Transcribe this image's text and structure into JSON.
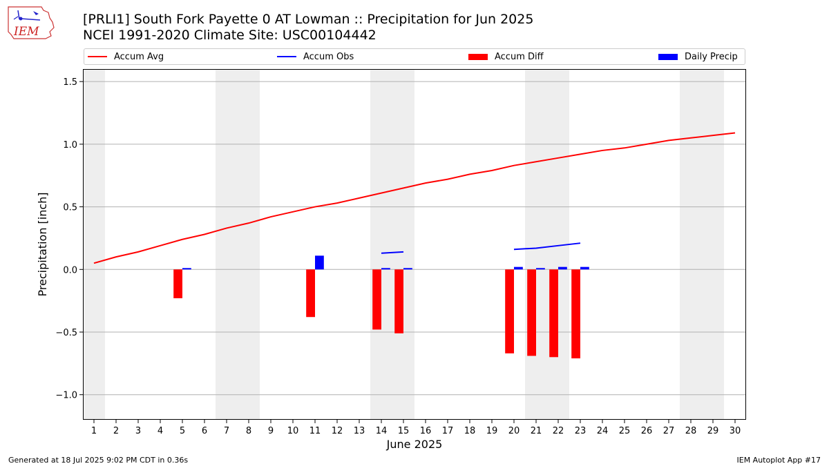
{
  "logo": {
    "text": "IEM"
  },
  "chart_data": {
    "type": "bar",
    "title": "[PRLI1] South Fork Payette 0 AT Lowman :: Precipitation for Jun 2025",
    "subtitle": "NCEI 1991-2020 Climate Site: USC00104442",
    "xlabel": "June 2025",
    "ylabel": "Precipitation [inch]",
    "ylim": [
      -1.2,
      1.6
    ],
    "yticks": [
      -1.0,
      -0.5,
      0.0,
      0.5,
      1.0,
      1.5
    ],
    "ytick_labels": [
      "−1.0",
      "−0.5",
      "0.0",
      "0.5",
      "1.0",
      "1.5"
    ],
    "grid": "horizontal",
    "legend_position": "top",
    "weekend_shading": [
      [
        1,
        1
      ],
      [
        7,
        8
      ],
      [
        14,
        15
      ],
      [
        21,
        22
      ],
      [
        28,
        29
      ]
    ],
    "x": [
      1,
      2,
      3,
      4,
      5,
      6,
      7,
      8,
      9,
      10,
      11,
      12,
      13,
      14,
      15,
      16,
      17,
      18,
      19,
      20,
      21,
      22,
      23,
      24,
      25,
      26,
      27,
      28,
      29,
      30
    ],
    "series": [
      {
        "name": "Accum Avg",
        "kind": "line",
        "color": "#ff0000",
        "values": [
          0.05,
          0.1,
          0.14,
          0.19,
          0.24,
          0.28,
          0.33,
          0.37,
          0.42,
          0.46,
          0.5,
          0.53,
          0.57,
          0.61,
          0.65,
          0.69,
          0.72,
          0.76,
          0.79,
          0.83,
          0.86,
          0.89,
          0.92,
          0.95,
          0.97,
          1.0,
          1.03,
          1.05,
          1.07,
          1.09
        ]
      },
      {
        "name": "Accum Obs",
        "kind": "line",
        "color": "#0000ff",
        "segments": [
          {
            "x": [
              14,
              15
            ],
            "values": [
              0.13,
              0.14
            ]
          },
          {
            "x": [
              20,
              21,
              22,
              23
            ],
            "values": [
              0.16,
              0.17,
              0.19,
              0.21
            ]
          }
        ]
      },
      {
        "name": "Accum Diff",
        "kind": "bar",
        "color": "#ff0000",
        "x": [
          5,
          11,
          14,
          15,
          20,
          21,
          22,
          23
        ],
        "values": [
          -0.23,
          -0.38,
          -0.48,
          -0.51,
          -0.67,
          -0.69,
          -0.7,
          -0.71
        ]
      },
      {
        "name": "Daily Precip",
        "kind": "bar",
        "color": "#0000ff",
        "x": [
          5,
          11,
          14,
          15,
          20,
          21,
          22,
          23
        ],
        "values": [
          0.01,
          0.11,
          0.01,
          0.01,
          0.02,
          0.01,
          0.02,
          0.02
        ]
      }
    ]
  },
  "footer": {
    "generated": "Generated at 18 Jul 2025 9:02 PM CDT in 0.36s",
    "app": "IEM Autoplot App #17"
  }
}
